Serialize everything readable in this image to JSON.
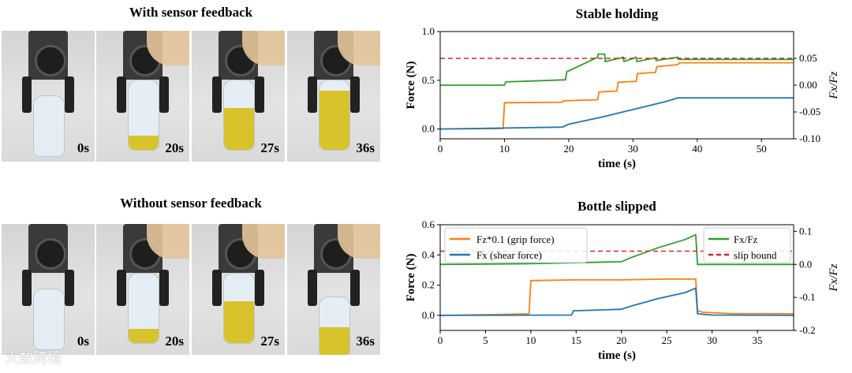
{
  "photos_top": {
    "title": "With sensor feedback",
    "frames": [
      {
        "label": "0s",
        "liquid": 0.0,
        "held": false
      },
      {
        "label": "20s",
        "liquid": 0.2,
        "held": true
      },
      {
        "label": "27s",
        "liquid": 0.6,
        "held": true
      },
      {
        "label": "36s",
        "liquid": 0.85,
        "held": true
      }
    ]
  },
  "photos_bottom": {
    "title": "Without sensor feedback",
    "frames": [
      {
        "label": "0s",
        "liquid": 0.0,
        "held": false
      },
      {
        "label": "20s",
        "liquid": 0.2,
        "held": true
      },
      {
        "label": "27s",
        "liquid": 0.6,
        "held": true
      },
      {
        "label": "36s",
        "liquid": 0.5,
        "held": false
      }
    ]
  },
  "watermark": "大数跨境",
  "chart_data": [
    {
      "type": "line",
      "title": "Stable holding",
      "xlabel": "time (s)",
      "ylabel": "Force (N)",
      "y2label": "Fx/Fz",
      "xlim": [
        0,
        55
      ],
      "ylim": [
        -0.1,
        1.0
      ],
      "y2lim": [
        -0.1,
        0.1
      ],
      "xticks": [
        "0",
        "10",
        "20",
        "30",
        "40",
        "50"
      ],
      "yticks": [
        "0.0",
        "0.5",
        "1.0"
      ],
      "y2ticks": [
        "0.05",
        "0.00",
        "-0.05",
        "-0.10"
      ],
      "grid": false,
      "slip_bound": 0.05,
      "series": [
        {
          "axis": "left",
          "color": "#ff7f0e",
          "x": [
            0,
            9.8,
            10,
            19,
            19.2,
            24.5,
            24.7,
            27.5,
            27.7,
            30.5,
            30.7,
            33.5,
            33.7,
            37,
            37.2,
            55
          ],
          "y": [
            0,
            0.005,
            0.27,
            0.275,
            0.29,
            0.3,
            0.38,
            0.39,
            0.48,
            0.49,
            0.57,
            0.58,
            0.64,
            0.66,
            0.68,
            0.68
          ]
        },
        {
          "axis": "left",
          "color": "#1f77b4",
          "x": [
            0,
            10,
            19,
            20,
            25,
            30,
            35,
            37,
            55
          ],
          "y": [
            0,
            0.01,
            0.02,
            0.05,
            0.12,
            0.2,
            0.28,
            0.32,
            0.32
          ]
        },
        {
          "axis": "right",
          "color": "#2ca02c",
          "x": [
            0,
            10,
            10.2,
            19.5,
            19.7,
            24.5,
            24.6,
            25.6,
            25.7,
            28.5,
            28.6,
            30.5,
            30.6,
            33.5,
            33.6,
            37,
            37.1,
            55
          ],
          "y": [
            0,
            0,
            0.006,
            0.01,
            0.025,
            0.052,
            0.058,
            0.058,
            0.044,
            0.052,
            0.044,
            0.052,
            0.044,
            0.051,
            0.046,
            0.052,
            0.048,
            0.048
          ]
        },
        {
          "axis": "right",
          "color": "#d62728",
          "dashed": true,
          "x": [
            0,
            55
          ],
          "y": [
            0.05,
            0.05
          ]
        }
      ]
    },
    {
      "type": "line",
      "title": "Bottle slipped",
      "xlabel": "time (s)",
      "ylabel": "Force (N)",
      "y2label": "Fx/Fz",
      "xlim": [
        0,
        39
      ],
      "ylim": [
        -0.1,
        0.6
      ],
      "y2lim": [
        -0.2,
        0.12
      ],
      "xticks": [
        "0",
        "5",
        "10",
        "15",
        "20",
        "25",
        "30",
        "35"
      ],
      "yticks": [
        "0.0",
        "0.2",
        "0.4",
        "0.6"
      ],
      "y2ticks": [
        "0.1",
        "0.0",
        "-0.1",
        "-0.2"
      ],
      "grid": false,
      "legend_left": [
        "Fz*0.1 (grip force)",
        "Fx (shear force)"
      ],
      "legend_right": [
        "Fx/Fz",
        "slip bound"
      ],
      "slip_bound": 0.04,
      "series": [
        {
          "name": "Fz*0.1 (grip force)",
          "axis": "left",
          "color": "#ff7f0e",
          "x": [
            0,
            6,
            9.8,
            10,
            15,
            20,
            25,
            28.2,
            28.4,
            29,
            32,
            39
          ],
          "y": [
            0,
            0.005,
            0.01,
            0.23,
            0.235,
            0.235,
            0.24,
            0.24,
            0.03,
            0.02,
            0.012,
            0.01
          ]
        },
        {
          "name": "Fx (shear force)",
          "axis": "left",
          "color": "#1f77b4",
          "x": [
            0,
            14.5,
            14.7,
            20,
            21,
            24,
            27,
            28.2,
            28.4,
            30,
            39
          ],
          "y": [
            0,
            0.002,
            0.03,
            0.04,
            0.06,
            0.11,
            0.15,
            0.18,
            0.01,
            0.002,
            0
          ]
        },
        {
          "name": "Fx/Fz",
          "axis": "right",
          "color": "#2ca02c",
          "x": [
            0,
            10,
            20,
            21,
            24,
            27,
            28.2,
            28.4,
            39
          ],
          "y": [
            0,
            0.002,
            0.008,
            0.02,
            0.05,
            0.075,
            0.09,
            0.0,
            0.0
          ]
        },
        {
          "name": "slip bound",
          "axis": "right",
          "color": "#d62728",
          "dashed": true,
          "x": [
            0,
            39
          ],
          "y": [
            0.04,
            0.04
          ]
        }
      ]
    }
  ]
}
